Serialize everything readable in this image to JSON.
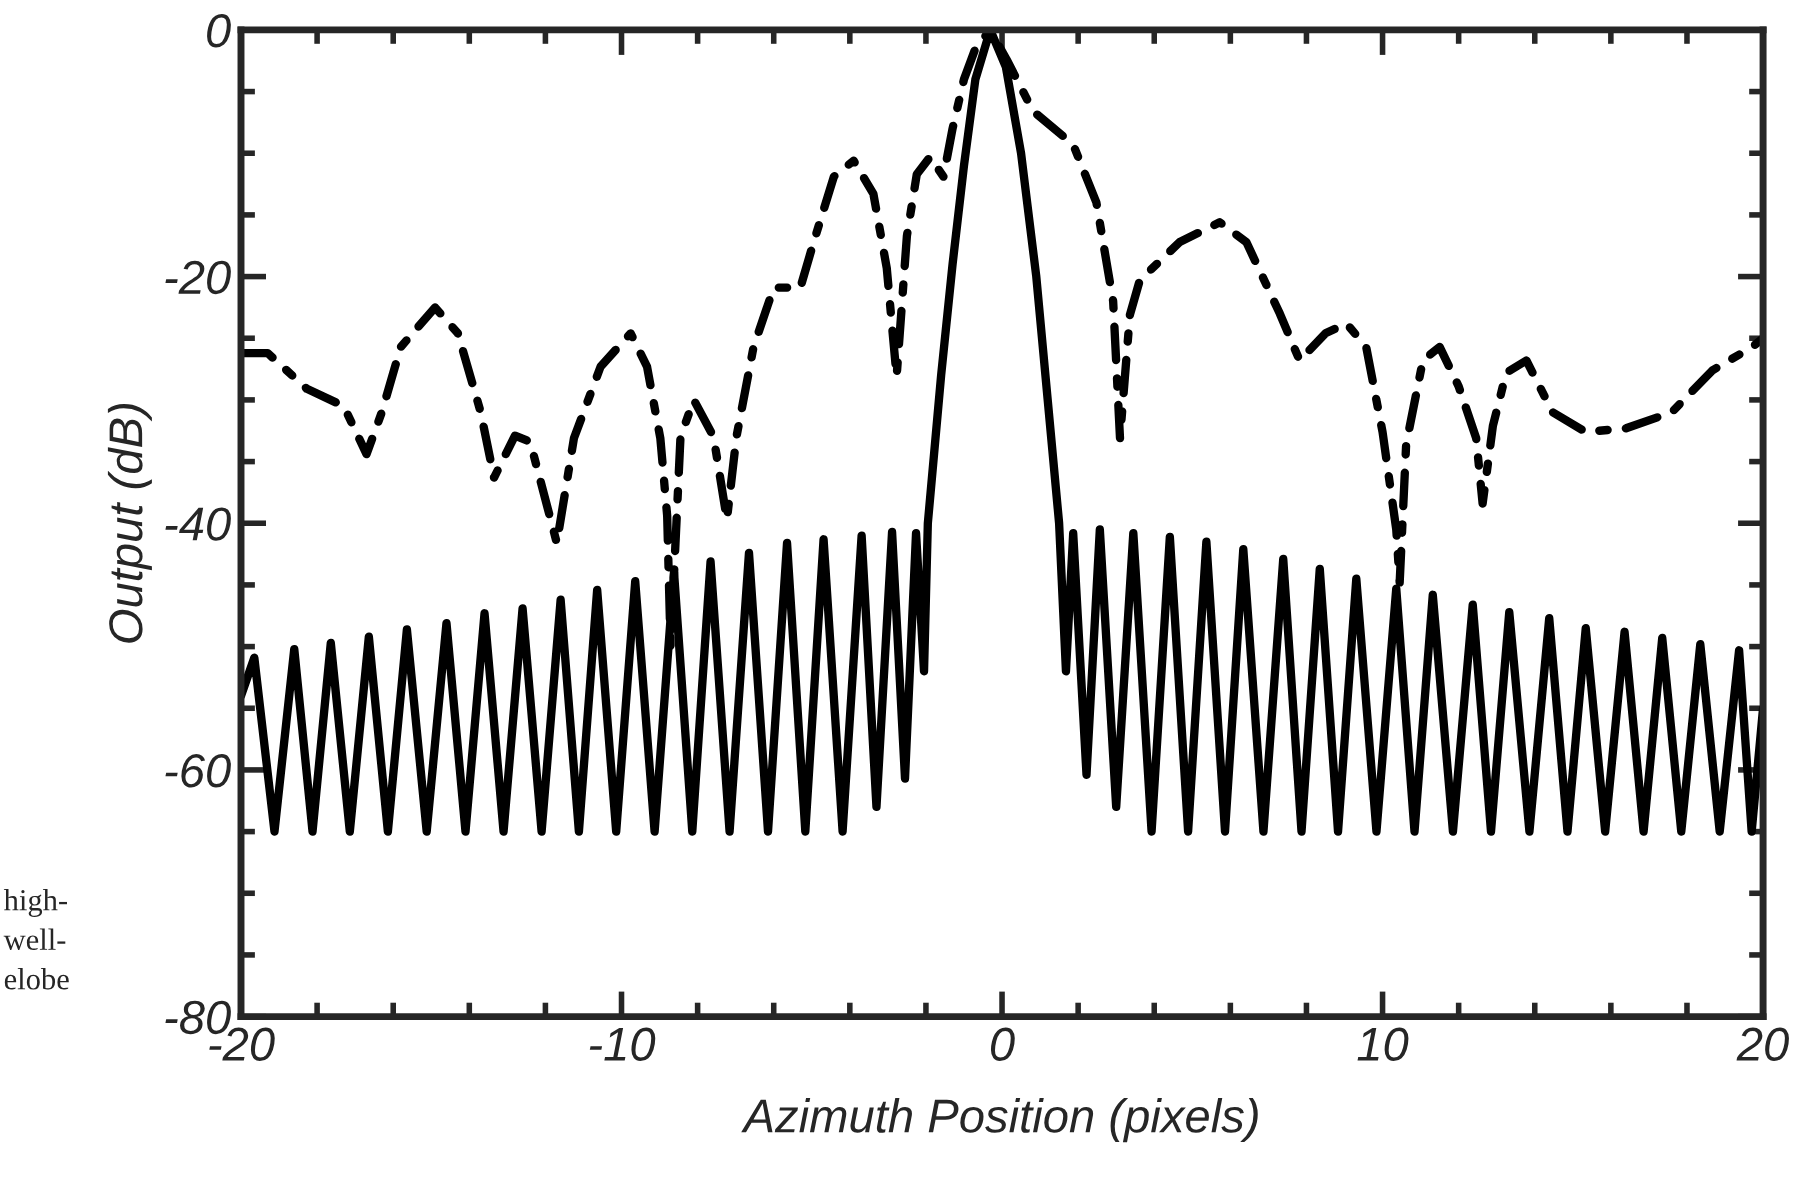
{
  "chart_data": {
    "type": "line",
    "xlabel": "Azimuth Position (pixels)",
    "ylabel": "Output (dB)",
    "xlim": [
      -20,
      20
    ],
    "ylim": [
      -80,
      0
    ],
    "xticks": [
      -20,
      -10,
      0,
      10,
      20
    ],
    "yticks": [
      -80,
      -60,
      -40,
      -20,
      0
    ],
    "grid": false,
    "marker": "none",
    "annotations": [
      "high-",
      "well-",
      "elobe"
    ],
    "series": [
      {
        "color": "#000000",
        "line_style": "solid",
        "x": [
          -20,
          -19.65,
          -19.12,
          -18.6,
          -18.12,
          -17.64,
          -17.14,
          -16.64,
          -16.14,
          -15.64,
          -15.12,
          -14.6,
          -14.1,
          -13.6,
          -13.1,
          -12.6,
          -12.1,
          -11.6,
          -11.12,
          -10.64,
          -10.14,
          -9.64,
          -9.13,
          -8.62,
          -8.14,
          -7.66,
          -7.16,
          -6.65,
          -6.15,
          -5.65,
          -5.17,
          -4.69,
          -4.19,
          -3.69,
          -3.3,
          -2.89,
          -2.55,
          -2.26,
          -2.05,
          -1.95,
          -1.6,
          -1.3,
          -1.0,
          -0.7,
          -0.31,
          0.1,
          0.5,
          0.9,
          1.2,
          1.5,
          1.68,
          1.87,
          2.22,
          2.57,
          3.0,
          3.45,
          3.93,
          4.41,
          4.89,
          5.37,
          5.86,
          6.34,
          6.87,
          7.39,
          7.87,
          8.35,
          8.83,
          9.31,
          9.84,
          10.36,
          10.84,
          11.32,
          11.85,
          12.37,
          12.85,
          13.33,
          13.86,
          14.38,
          14.86,
          15.34,
          15.85,
          16.36,
          16.86,
          17.35,
          17.85,
          18.35,
          18.86,
          19.37,
          19.7,
          20
        ],
        "values": [
          -54,
          -50.9,
          -65,
          -50.2,
          -65,
          -49.7,
          -65,
          -49.2,
          -65,
          -48.6,
          -65,
          -48.1,
          -65,
          -47.3,
          -65,
          -46.9,
          -65,
          -46.2,
          -65,
          -45.4,
          -65,
          -44.7,
          -65,
          -44.0,
          -65,
          -43.1,
          -65,
          -42.4,
          -65,
          -41.6,
          -65,
          -41.3,
          -65,
          -41.0,
          -63,
          -40.7,
          -60.7,
          -40.8,
          -52,
          -40,
          -28,
          -19,
          -11,
          -4,
          0,
          -3,
          -10,
          -20,
          -30,
          -40,
          -52,
          -40.8,
          -60.4,
          -40.5,
          -63,
          -40.8,
          -65,
          -41.1,
          -65,
          -41.5,
          -65,
          -42.1,
          -65,
          -42.9,
          -65,
          -43.7,
          -65,
          -44.5,
          -65,
          -45.3,
          -65,
          -45.8,
          -65,
          -46.6,
          -65,
          -47.2,
          -65,
          -47.7,
          -65,
          -48.5,
          -65,
          -48.8,
          -65,
          -49.3,
          -65,
          -49.8,
          -65,
          -50.3,
          -65,
          -55
        ]
      },
      {
        "color": "#000000",
        "line_style": "dashdot",
        "x": [
          -20,
          -19.3,
          -18.27,
          -17.3,
          -16.7,
          -16.3,
          -15.8,
          -14.9,
          -14.3,
          -13.7,
          -13.35,
          -12.8,
          -12.4,
          -11.7,
          -11.25,
          -10.55,
          -9.76,
          -9.33,
          -8.98,
          -8.8,
          -8.71,
          -8.45,
          -8.1,
          -7.58,
          -7.23,
          -6.98,
          -6.53,
          -6.0,
          -5.3,
          -4.95,
          -4.42,
          -3.9,
          -3.38,
          -3.03,
          -2.77,
          -2.5,
          -2.24,
          -1.89,
          -1.54,
          -1.3,
          -1.0,
          -0.7,
          -0.31,
          0.12,
          0.82,
          1.87,
          2.48,
          2.92,
          3.1,
          3.36,
          3.62,
          4.67,
          5.72,
          6.42,
          7.3,
          7.82,
          8.5,
          9.05,
          9.57,
          10.0,
          10.36,
          10.45,
          10.62,
          11.06,
          11.5,
          12.0,
          12.46,
          12.63,
          12.9,
          13.25,
          13.78,
          14.47,
          15.34,
          16.4,
          17.6,
          18.67,
          19.72,
          20
        ],
        "values": [
          -26.2,
          -26.2,
          -29.1,
          -30.5,
          -34.4,
          -31,
          -25.7,
          -22.5,
          -24.6,
          -31,
          -36.3,
          -32.9,
          -33.4,
          -41.6,
          -33.1,
          -27.3,
          -24.6,
          -27.3,
          -33.1,
          -39.4,
          -50,
          -33,
          -30,
          -33,
          -39.7,
          -33,
          -25.7,
          -20.9,
          -20.9,
          -17.2,
          -11.9,
          -10.6,
          -13.3,
          -19.3,
          -28.1,
          -16.7,
          -11.7,
          -10.3,
          -11.9,
          -8,
          -4,
          -1.5,
          0,
          -2.4,
          -6.6,
          -9.3,
          -14,
          -22,
          -33.1,
          -23.1,
          -20.3,
          -17.2,
          -15.6,
          -17.2,
          -23,
          -26.8,
          -24.6,
          -23.8,
          -25.7,
          -32.6,
          -40.5,
          -44.8,
          -33.6,
          -26.8,
          -25.7,
          -28.9,
          -33.1,
          -38.4,
          -32.1,
          -27.8,
          -26.8,
          -31,
          -32.6,
          -32.3,
          -31,
          -27.6,
          -25.7,
          -25
        ]
      }
    ]
  }
}
